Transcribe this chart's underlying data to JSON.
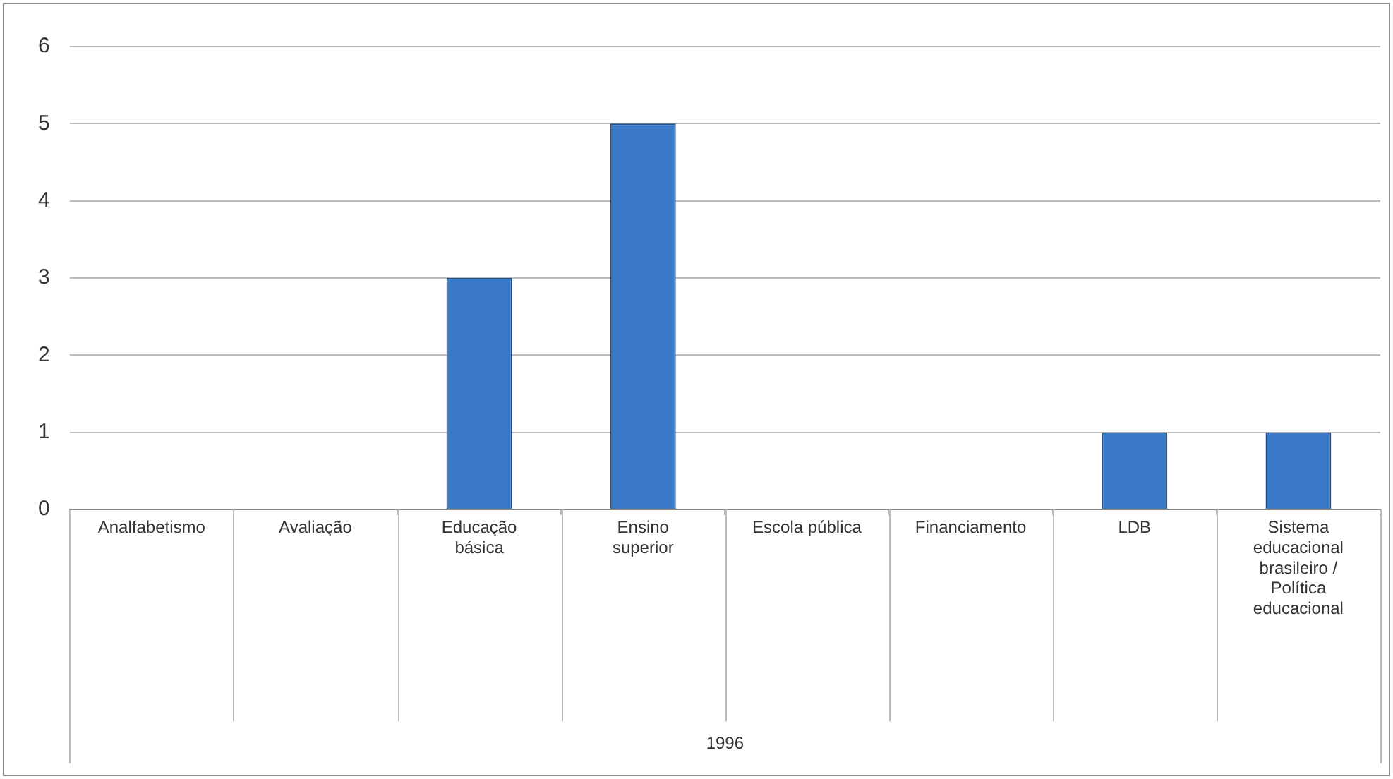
{
  "chart_data": {
    "type": "bar",
    "categories": [
      "Analfabetismo",
      "Avaliação",
      "Educação básica",
      "Ensino superior",
      "Escola pública",
      "Financiamento",
      "LDB",
      "Sistema educacional brasileiro / Política educacional"
    ],
    "values": [
      0,
      0,
      3,
      5,
      0,
      0,
      1,
      1
    ],
    "color": "#3a78c8",
    "annotations": [
      "1996"
    ],
    "ylim": [
      0,
      6
    ],
    "yticks": [
      0,
      1,
      2,
      3,
      4,
      5,
      6
    ],
    "grid": "y",
    "legend": false
  }
}
